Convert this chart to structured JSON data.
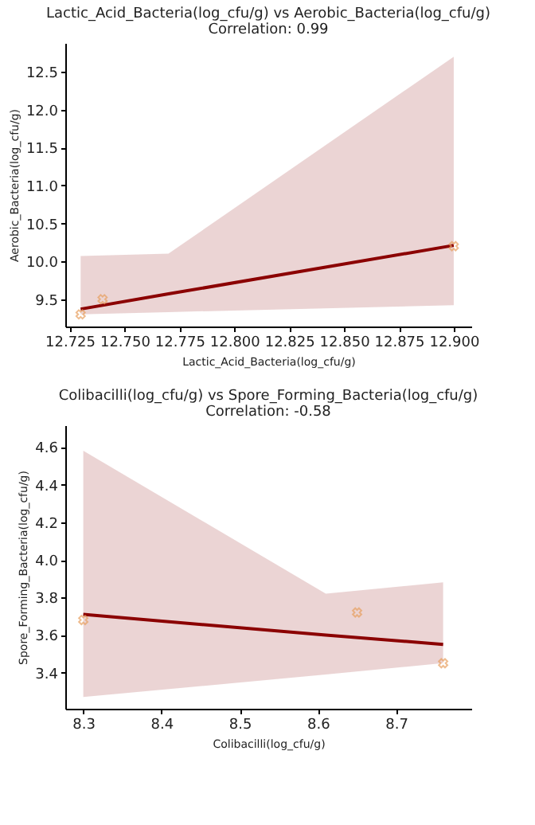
{
  "chart_data": [
    {
      "type": "scatter",
      "title": "Lactic_Acid_Bacteria(log_cfu/g) vs Aerobic_Bacteria(log_cfu/g)",
      "subtitle": "Correlation: 0.99",
      "xlabel": "Lactic_Acid_Bacteria(log_cfu/g)",
      "ylabel": "Aerobic_Bacteria(log_cfu/g)",
      "xlim": [
        12.723,
        12.908
      ],
      "ylim": [
        9.14,
        12.88
      ],
      "xticks": [
        12.725,
        {
          "value": 12.75,
          "label": "12.750"
        },
        12.775,
        {
          "value": 12.8,
          "label": "12.800"
        },
        12.825,
        {
          "value": 12.85,
          "label": "12.850"
        },
        12.875,
        {
          "value": 12.9,
          "label": "12.900"
        }
      ],
      "yticks": [
        9.5,
        {
          "value": 10,
          "label": "10.0"
        },
        10.5,
        {
          "value": 11,
          "label": "11.0"
        },
        11.5,
        {
          "value": 12,
          "label": "12.0"
        },
        12.5
      ],
      "series": [
        {
          "marker": "cross",
          "color": "#e8a060",
          "x": [
            12.73,
            12.74,
            12.9
          ],
          "values": [
            9.3,
            9.5,
            10.2
          ]
        },
        {
          "type": "line",
          "color": "#8b0000",
          "line_style": "solid",
          "x": [
            12.73,
            12.77,
            12.9
          ],
          "values": [
            9.37,
            9.57,
            10.21
          ],
          "lower": [
            9.3,
            9.33,
            9.42
          ],
          "upper": [
            10.07,
            10.1,
            12.7
          ]
        }
      ]
    },
    {
      "type": "scatter",
      "title": "Colibacilli(log_cfu/g) vs Spore_Forming_Bacteria(log_cfu/g)",
      "subtitle": "Correlation: -0.58",
      "xlabel": "Colibacilli(log_cfu/g)",
      "ylabel": "Spore_Forming_Bacteria(log_cfu/g)",
      "xlim": [
        8.277,
        8.796
      ],
      "ylim": [
        3.208,
        4.716
      ],
      "xticks": [
        8.3,
        8.4,
        8.5,
        8.6,
        8.7
      ],
      "yticks": [
        3.4,
        3.6,
        3.8,
        {
          "value": 4,
          "label": "4.0"
        },
        4.2,
        4.4,
        4.6
      ],
      "series": [
        {
          "marker": "cross",
          "color": "#e8a060",
          "x": [
            8.3,
            8.65,
            8.76
          ],
          "values": [
            3.68,
            3.72,
            3.45
          ]
        },
        {
          "type": "line",
          "color": "#8b0000",
          "line_style": "solid",
          "x": [
            8.3,
            8.61,
            8.76
          ],
          "values": [
            3.71,
            3.6,
            3.55
          ],
          "lower": [
            3.27,
            3.39,
            3.45
          ],
          "upper": [
            4.58,
            3.82,
            3.88
          ]
        }
      ]
    }
  ]
}
